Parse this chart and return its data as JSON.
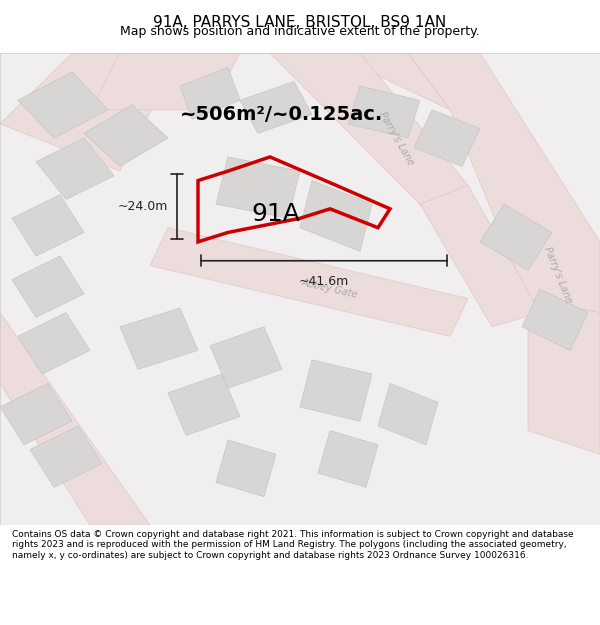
{
  "title": "91A, PARRYS LANE, BRISTOL, BS9 1AN",
  "subtitle": "Map shows position and indicative extent of the property.",
  "footer": "Contains OS data © Crown copyright and database right 2021. This information is subject to Crown copyright and database rights 2023 and is reproduced with the permission of HM Land Registry. The polygons (including the associated geometry, namely x, y co-ordinates) are subject to Crown copyright and database rights 2023 Ordnance Survey 100026316.",
  "area_label": "~506m²/~0.125ac.",
  "width_label": "~41.6m",
  "height_label": "~24.0m",
  "property_label": "91A",
  "bg_color": "#f5f5f5",
  "map_bg": "#f0eeee",
  "road_color": "#f5c4c4",
  "road_line_color": "#e8a8a8",
  "building_fill": "#d8d5d5",
  "building_edge": "#c8c5c5",
  "property_fill": "none",
  "property_edge": "#cc0000",
  "property_lw": 2.5,
  "road_label_color": "#aaaaaa",
  "dim_color": "#222222",
  "label_fontsize": 9,
  "title_fontsize": 11,
  "subtitle_fontsize": 9,
  "footer_fontsize": 6.5,
  "area_fontsize": 14,
  "property_label_fontsize": 18,
  "dim_fontsize": 9
}
